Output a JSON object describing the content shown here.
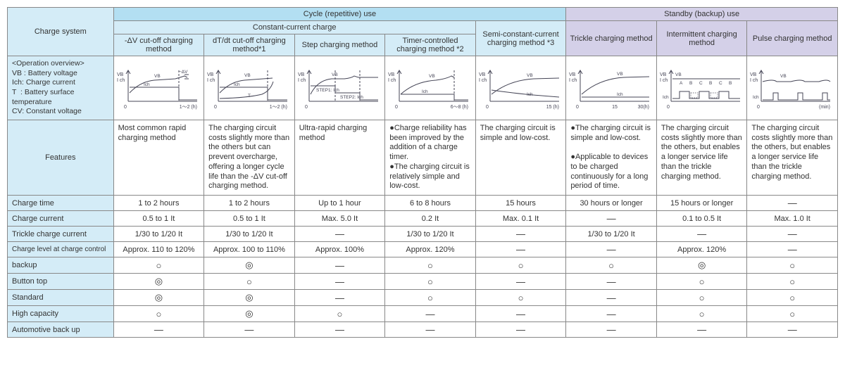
{
  "colors": {
    "header_cycle": "#b3dff2",
    "header_constant": "#d4ecf7",
    "header_standby": "#d4d0e8",
    "rowheader": "#d4ecf7",
    "border": "#888888",
    "text": "#333333",
    "graph_line": "#445"
  },
  "toprow": {
    "charge_system": "Charge system",
    "cycle": "Cycle (repetitive) use",
    "standby": "Standby (backup) use",
    "constant_current": "Constant-current charge",
    "semi_constant": "Semi-constant-current charging method *3",
    "methods": [
      "-ΔV cut-off charging method",
      "dT/dt cut-off charging method*1",
      "Step charging method",
      "Timer-controlled charging method *2"
    ],
    "trickle": "Trickle charging method",
    "intermittent": "Intermittent charging method",
    "pulse": "Pulse charging method"
  },
  "overview": {
    "label": "<Operation overview>",
    "lines": [
      "VB : Battery voltage",
      "Ich: Charge current",
      "T  : Battery surface temperature",
      "CV: Constant voltage"
    ]
  },
  "graphs": {
    "x_labels": [
      "1～2 (h)",
      "1～2 (h)",
      "",
      "6～8 (h)",
      "15 (h)",
      "30(h)",
      "",
      "(min)"
    ],
    "x_mid_labels": [
      "",
      "",
      "",
      "",
      "",
      "15",
      "",
      ""
    ]
  },
  "rows": [
    {
      "key": "features",
      "label": "Features",
      "cells": [
        "Most common rapid charging method",
        "The charging circuit costs slightly more than the others but can prevent overcharge, offering a longer cycle life than the -ΔV cut-off charging method.",
        "Ultra-rapid charging method",
        "●Charge reliability has been improved by the addition of a charge timer.\n●The charging circuit is relatively simple and low-cost.",
        "The charging circuit is simple and low-cost.",
        "●The charging circuit is simple and low-cost.\n\n●Applicable to devices to be charged continuously for a long period of time.",
        "The charging circuit costs slightly more than the others, but enables a longer service life than the trickle charging method.",
        "The charging circuit costs slightly more than the others, but enables a longer service life than the trickle charging method."
      ]
    },
    {
      "key": "charge_time",
      "label": "Charge time",
      "cells": [
        "1 to 2 hours",
        "1 to 2 hours",
        "Up to 1 hour",
        "6 to 8 hours",
        "15 hours",
        "30 hours or longer",
        "15 hours or longer",
        "—"
      ]
    },
    {
      "key": "charge_current",
      "label": "Charge current",
      "cells": [
        "0.5 to 1 It",
        "0.5 to 1 It",
        "Max. 5.0 It",
        "0.2 It",
        "Max. 0.1 It",
        "—",
        "0.1 to 0.5 It",
        "Max. 1.0 It"
      ]
    },
    {
      "key": "trickle_charge_current",
      "label": "Trickle charge current",
      "cells": [
        "1/30 to 1/20 It",
        "1/30 to 1/20 It",
        "—",
        "1/30 to 1/20 It",
        "—",
        "1/30 to 1/20 It",
        "—",
        "—"
      ]
    },
    {
      "key": "charge_level",
      "label": "Charge level at charge control",
      "cells": [
        "Approx. 110 to 120%",
        "Approx. 100 to 110%",
        "Approx. 100%",
        "Approx. 120%",
        "—",
        "—",
        "Approx. 120%",
        "—"
      ]
    },
    {
      "key": "backup",
      "label": "backup",
      "cells": [
        "○",
        "◎",
        "—",
        "○",
        "○",
        "○",
        "◎",
        "○"
      ]
    },
    {
      "key": "button_top",
      "label": "Button top",
      "cells": [
        "◎",
        "○",
        "—",
        "○",
        "—",
        "—",
        "○",
        "○"
      ]
    },
    {
      "key": "standard",
      "label": "Standard",
      "cells": [
        "◎",
        "◎",
        "—",
        "○",
        "○",
        "—",
        "○",
        "○"
      ]
    },
    {
      "key": "high_capacity",
      "label": "High capacity",
      "cells": [
        "○",
        "◎",
        "○",
        "—",
        "—",
        "—",
        "○",
        "○"
      ]
    },
    {
      "key": "auto_backup",
      "label": "Automotive back up",
      "cells": [
        "—",
        "—",
        "—",
        "—",
        "—",
        "—",
        "—",
        "—"
      ]
    }
  ]
}
